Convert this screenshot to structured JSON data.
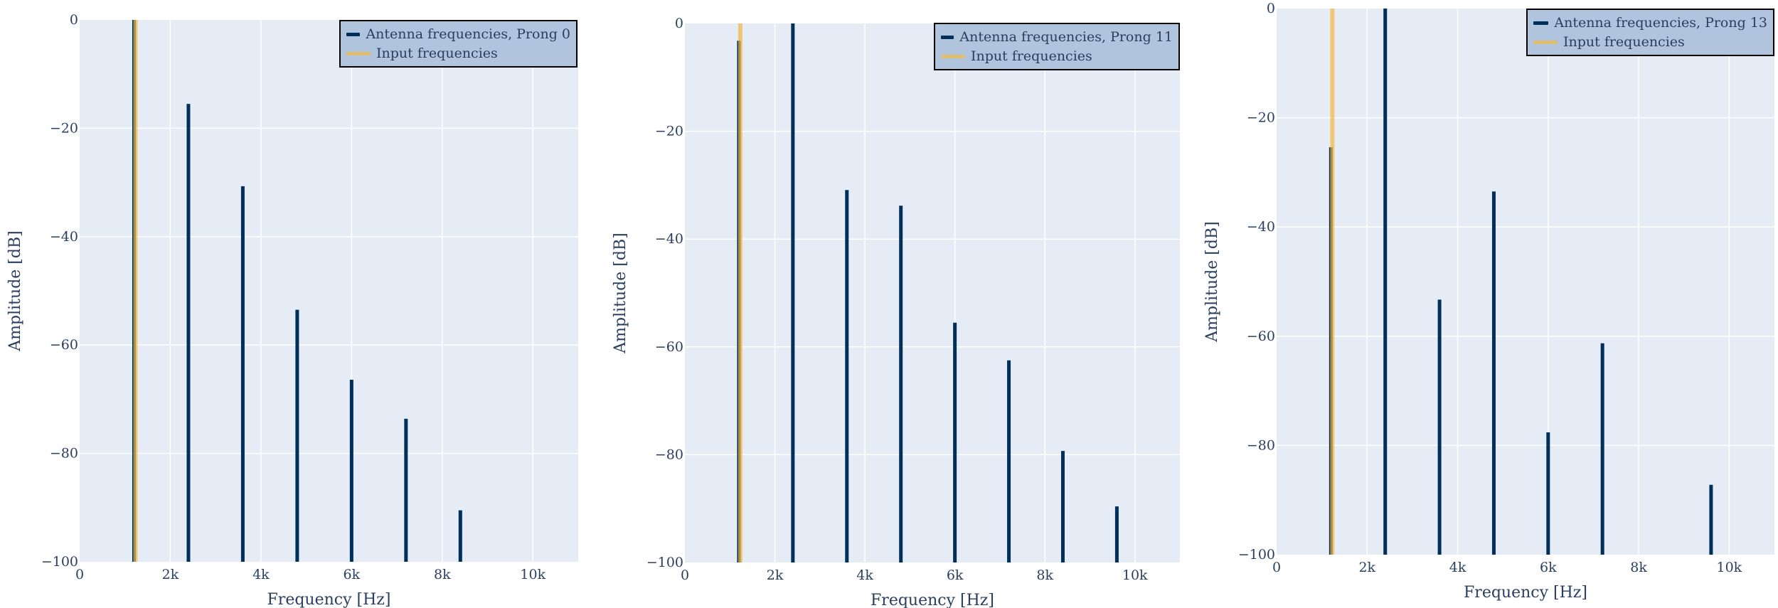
{
  "style": {
    "plot_bg": "#e5ecf6",
    "grid_color": "#ffffff",
    "antenna_color": "#002f5a",
    "input_color": "#f4b942",
    "input_opacity": 0.7,
    "legend_bg": "#b0c4de",
    "text_color": "#2a3f5f"
  },
  "panels": [
    {
      "legend": {
        "antenna_label": "Antenna frequencies, Prong 0",
        "input_label": "Input frequencies"
      },
      "xlabel": "Frequency [Hz]",
      "ylabel": "Amplitude [dB]"
    },
    {
      "legend": {
        "antenna_label": "Antenna frequencies, Prong 11",
        "input_label": "Input frequencies"
      },
      "xlabel": "Frequency [Hz]",
      "ylabel": "Amplitude [dB]"
    },
    {
      "legend": {
        "antenna_label": "Antenna frequencies, Prong 13",
        "input_label": "Input frequencies"
      },
      "xlabel": "Frequency [Hz]",
      "ylabel": "Amplitude [dB]"
    }
  ],
  "chart_data": [
    {
      "type": "bar",
      "title": "",
      "xlabel": "Frequency [Hz]",
      "ylabel": "Amplitude [dB]",
      "xlim": [
        0,
        11000
      ],
      "ylim": [
        -100,
        0
      ],
      "x_ticks": [
        0,
        2000,
        4000,
        6000,
        8000,
        10000
      ],
      "x_tick_labels": [
        "0",
        "2k",
        "4k",
        "6k",
        "8k",
        "10k"
      ],
      "y_ticks": [
        0,
        -20,
        -40,
        -60,
        -80,
        -100
      ],
      "y_tick_labels": [
        "0",
        "−20",
        "−40",
        "−60",
        "−80",
        "−100"
      ],
      "grid": true,
      "legend_position": "top-right",
      "series": [
        {
          "name": "Antenna frequencies, Prong 0",
          "x": [
            1200,
            2400,
            3600,
            4800,
            6000,
            7200,
            8400
          ],
          "values": [
            0,
            -15.5,
            -30.7,
            -53.5,
            -66.4,
            -73.6,
            -90.5
          ]
        },
        {
          "name": "Input frequencies",
          "x": [
            1200
          ],
          "values": [
            0
          ]
        }
      ]
    },
    {
      "type": "bar",
      "title": "",
      "xlabel": "Frequency [Hz]",
      "ylabel": "Amplitude [dB]",
      "xlim": [
        0,
        11000
      ],
      "ylim": [
        -100,
        0
      ],
      "x_ticks": [
        0,
        2000,
        4000,
        6000,
        8000,
        10000
      ],
      "x_tick_labels": [
        "0",
        "2k",
        "4k",
        "6k",
        "8k",
        "10k"
      ],
      "y_ticks": [
        0,
        -20,
        -40,
        -60,
        -80,
        -100
      ],
      "y_tick_labels": [
        "0",
        "−20",
        "−40",
        "−60",
        "−80",
        "−100"
      ],
      "grid": true,
      "legend_position": "top-right",
      "series": [
        {
          "name": "Antenna frequencies, Prong 11",
          "x": [
            1200,
            2400,
            3600,
            4800,
            6000,
            7200,
            8400,
            9600
          ],
          "values": [
            -3.2,
            0,
            -30.9,
            -33.8,
            -55.5,
            -62.5,
            -79.3,
            -89.6
          ]
        },
        {
          "name": "Input frequencies",
          "x": [
            1200
          ],
          "values": [
            0
          ]
        }
      ]
    },
    {
      "type": "bar",
      "title": "",
      "xlabel": "Frequency [Hz]",
      "ylabel": "Amplitude [dB]",
      "xlim": [
        0,
        11000
      ],
      "ylim": [
        -100,
        0
      ],
      "x_ticks": [
        0,
        2000,
        4000,
        6000,
        8000,
        10000
      ],
      "x_tick_labels": [
        "0",
        "2k",
        "4k",
        "6k",
        "8k",
        "10k"
      ],
      "y_ticks": [
        0,
        -20,
        -40,
        -60,
        -80,
        -100
      ],
      "y_tick_labels": [
        "0",
        "−20",
        "−40",
        "−60",
        "−80",
        "−100"
      ],
      "grid": true,
      "legend_position": "top-right",
      "series": [
        {
          "name": "Antenna frequencies, Prong 13",
          "x": [
            1200,
            2400,
            3600,
            4800,
            6000,
            7200,
            9600
          ],
          "values": [
            -25.4,
            0,
            -53.3,
            -33.5,
            -77.6,
            -61.3,
            -87.2
          ]
        },
        {
          "name": "Input frequencies",
          "x": [
            1200
          ],
          "values": [
            0
          ]
        }
      ]
    }
  ]
}
